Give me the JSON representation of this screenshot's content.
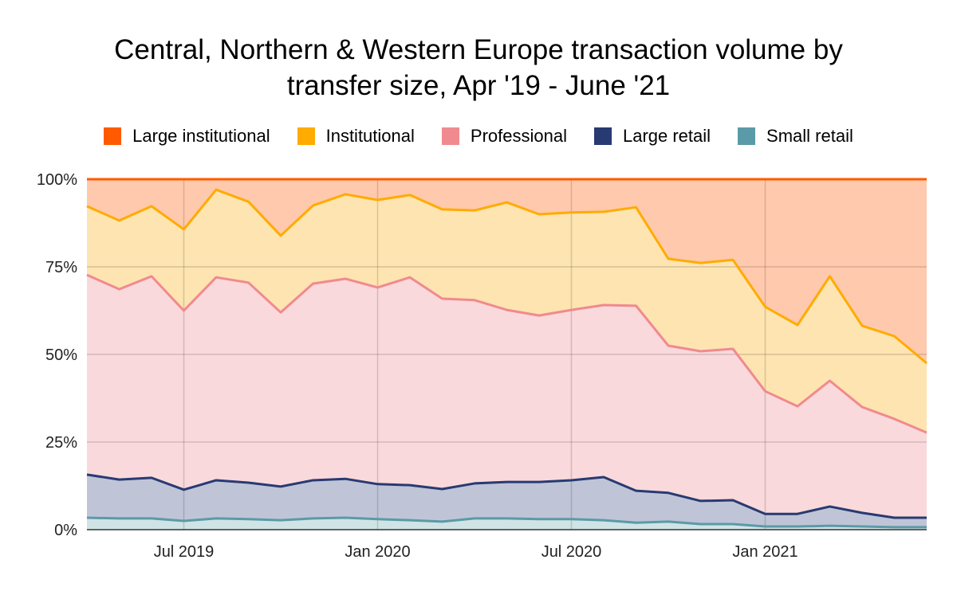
{
  "chart_data": {
    "type": "area",
    "stacked": true,
    "title": [
      "Central, Northern & Western Europe transaction volume by",
      "transfer size, Apr '19 - June '21"
    ],
    "xlabel": "",
    "ylabel": "",
    "x": [
      "2019-04",
      "2019-05",
      "2019-06",
      "2019-07",
      "2019-08",
      "2019-09",
      "2019-10",
      "2019-11",
      "2019-12",
      "2020-01",
      "2020-02",
      "2020-03",
      "2020-04",
      "2020-05",
      "2020-06",
      "2020-07",
      "2020-08",
      "2020-09",
      "2020-10",
      "2020-11",
      "2020-12",
      "2021-01",
      "2021-02",
      "2021-03",
      "2021-04",
      "2021-05",
      "2021-06"
    ],
    "x_ticks": [
      {
        "x": "2019-07",
        "label": "Jul 2019"
      },
      {
        "x": "2020-01",
        "label": "Jan 2020"
      },
      {
        "x": "2020-07",
        "label": "Jul 2020"
      },
      {
        "x": "2021-01",
        "label": "Jan 2021"
      }
    ],
    "y_ticks": [
      {
        "y": 0,
        "label": "0%"
      },
      {
        "y": 25,
        "label": "25%"
      },
      {
        "y": 50,
        "label": "50%"
      },
      {
        "y": 75,
        "label": "75%"
      },
      {
        "y": 100,
        "label": "100%"
      }
    ],
    "ylim": [
      0,
      100
    ],
    "grid": true,
    "legend_position": "top",
    "series": [
      {
        "name": "Small retail",
        "color": "#5b9aa8",
        "fill": "#d0e4e6",
        "values": [
          3.4,
          3.2,
          3.2,
          2.5,
          3.2,
          3.0,
          2.7,
          3.2,
          3.4,
          3.0,
          2.7,
          2.3,
          3.2,
          3.2,
          3.0,
          3.0,
          2.7,
          2.0,
          2.3,
          1.6,
          1.6,
          0.9,
          0.9,
          1.1,
          0.9,
          0.7,
          0.7
        ]
      },
      {
        "name": "Large retail",
        "color": "#283a72",
        "fill": "#bfc5d7",
        "values": [
          12.3,
          11.1,
          11.6,
          8.9,
          10.9,
          10.4,
          9.6,
          10.9,
          11.1,
          10.0,
          10.0,
          9.3,
          10.0,
          10.4,
          10.6,
          11.1,
          12.3,
          9.1,
          8.2,
          6.6,
          6.8,
          3.6,
          3.6,
          5.5,
          3.9,
          2.7,
          2.7
        ]
      },
      {
        "name": "Professional",
        "color": "#f08a8f",
        "fill": "#f9d9db",
        "values": [
          57.0,
          54.3,
          57.5,
          51.1,
          57.9,
          57.1,
          49.7,
          56.1,
          57.1,
          56.1,
          59.3,
          54.3,
          52.3,
          49.1,
          47.5,
          48.6,
          49.1,
          52.8,
          42.0,
          42.7,
          43.2,
          35.0,
          30.7,
          35.9,
          30.2,
          28.2,
          24.3
        ]
      },
      {
        "name": "Institutional",
        "color": "#ffab00",
        "fill": "#fde4b0",
        "values": [
          19.6,
          19.6,
          20.0,
          23.2,
          25.0,
          23.1,
          21.9,
          22.3,
          24.1,
          25.0,
          23.5,
          25.5,
          25.6,
          30.7,
          28.9,
          27.8,
          26.6,
          28.1,
          24.8,
          25.2,
          25.4,
          24.1,
          23.2,
          29.8,
          23.2,
          23.6,
          19.8
        ]
      },
      {
        "name": "Large institutional",
        "color": "#ff5a00",
        "fill": "#ffc9ad",
        "values": [
          7.7,
          11.8,
          7.7,
          14.3,
          3.0,
          6.4,
          16.1,
          7.5,
          4.3,
          5.9,
          4.5,
          8.6,
          8.9,
          6.6,
          10.0,
          9.5,
          9.3,
          8.0,
          22.7,
          23.9,
          23.0,
          36.4,
          41.6,
          27.7,
          41.8,
          44.8,
          52.5
        ]
      }
    ],
    "legend_order": [
      "Large institutional",
      "Institutional",
      "Professional",
      "Large retail",
      "Small retail"
    ]
  }
}
